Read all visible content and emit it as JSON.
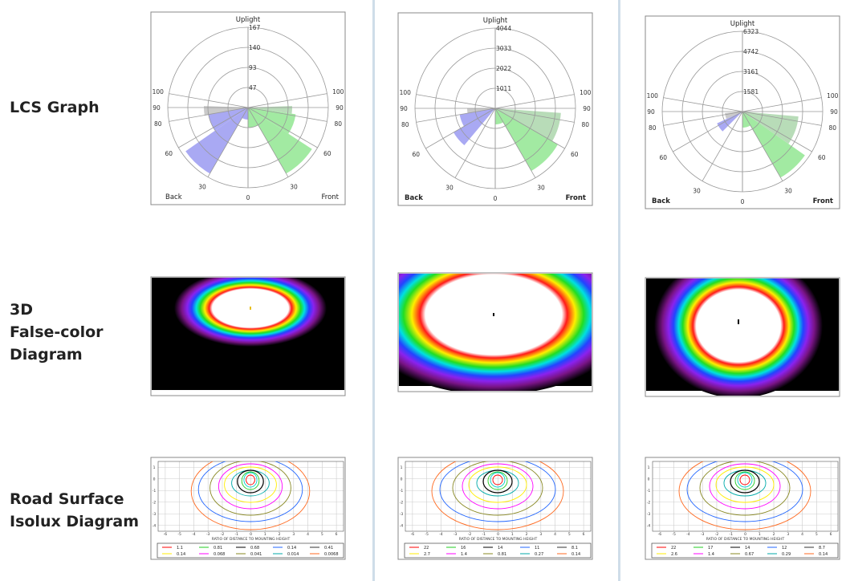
{
  "row_labels": [
    [
      "LCS Graph"
    ],
    [
      "3D",
      "False-color",
      "Diagram"
    ],
    [
      "Road Surface",
      "Isolux Diagram"
    ]
  ],
  "lcs": {
    "top_label": "Uplight",
    "back_label": "Back",
    "front_label": "Front",
    "angle_labels": [
      0,
      30,
      60,
      80,
      90,
      100
    ]
  },
  "isolux": {
    "axis_label": "RATIO OF DISTANCE TO MOUNTING HEIGHT",
    "xticks": [
      -6,
      -5,
      -4,
      -3,
      -2,
      -1,
      0,
      1,
      2,
      3,
      4,
      5,
      6
    ],
    "yticks": [
      1,
      0,
      -1,
      -2,
      -3,
      -4
    ]
  },
  "columns": [
    {
      "rings": [
        167,
        140,
        93,
        47
      ],
      "legend": [
        [
          1.1,
          0.81,
          0.68,
          0.14,
          0.41
        ],
        [
          0.14,
          0.068,
          0.041,
          0.014,
          0.0068
        ]
      ]
    },
    {
      "rings": [
        4044,
        3033,
        2022,
        1011
      ],
      "legend": [
        [
          22,
          16,
          14,
          11,
          8.1
        ],
        [
          2.7,
          1.4,
          0.81,
          0.27,
          0.14
        ]
      ]
    },
    {
      "rings": [
        6323,
        4742,
        3161,
        1581
      ],
      "legend": [
        [
          22,
          17,
          14,
          12,
          8.7
        ],
        [
          2.6,
          1.4,
          0.67,
          0.29,
          0.14
        ]
      ]
    }
  ]
}
